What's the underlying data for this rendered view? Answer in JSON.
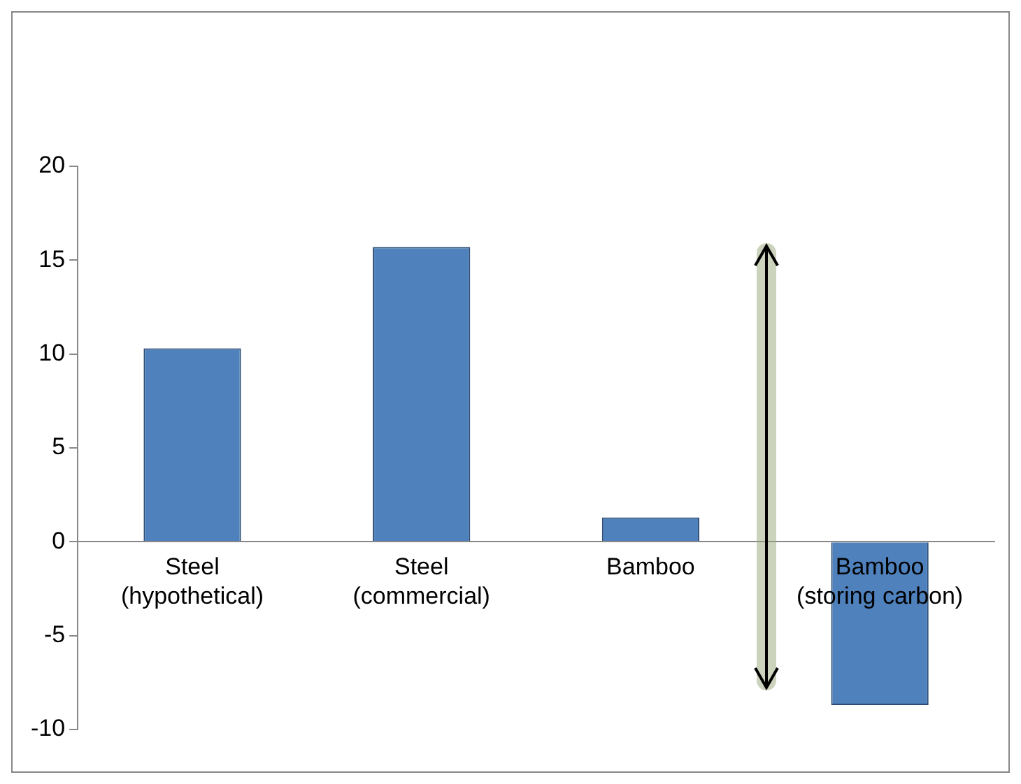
{
  "chart_data": {
    "type": "bar",
    "categories": [
      "Steel (hypothetical)",
      "Steel (commercial)",
      "Bamboo",
      "Bamboo (storing carbon)"
    ],
    "values": [
      10.3,
      15.7,
      1.3,
      -8.7
    ],
    "color": "#4f81bd",
    "ylim": [
      -10,
      20
    ],
    "yticks": [
      -10,
      -5,
      0,
      5,
      10,
      15,
      20
    ],
    "grid": false,
    "legend": false
  }
}
